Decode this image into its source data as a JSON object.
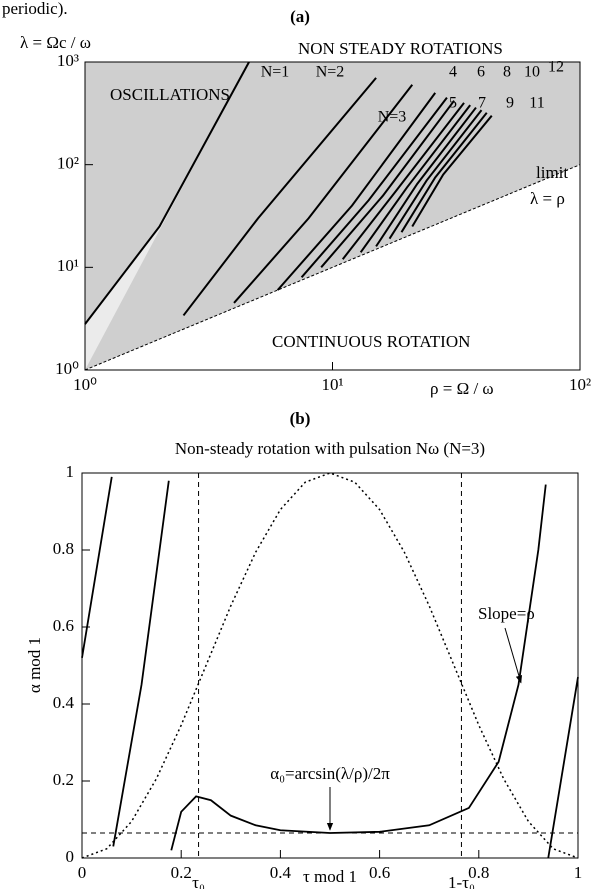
{
  "chart_data": [
    {
      "type": "line",
      "panel": "(a)",
      "caption_fragment": "periodic).",
      "ylabel": "λ = Ωc / ω",
      "xlabel": "ρ = Ω / ω",
      "log_x": true,
      "log_y": true,
      "xlim": [
        1,
        100
      ],
      "ylim": [
        1,
        1000
      ],
      "xticks": [
        {
          "value": 1,
          "label": "10⁰"
        },
        {
          "value": 10,
          "label": "10¹"
        },
        {
          "value": 100,
          "label": "10²"
        }
      ],
      "yticks": [
        {
          "value": 1,
          "label": "10⁰"
        },
        {
          "value": 10,
          "label": "10¹"
        },
        {
          "value": 100,
          "label": "10²"
        },
        {
          "value": 1000,
          "label": "10³"
        }
      ],
      "region_labels": [
        "OSCILLATIONS",
        "NON STEADY ROTATIONS",
        "CONTINUOUS ROTATION"
      ],
      "limit_label": [
        "limit",
        "λ = ρ"
      ],
      "limit": {
        "x": [
          1,
          100
        ],
        "y": [
          1,
          100
        ]
      },
      "series": [
        {
          "name": "N=1",
          "color": "#000000",
          "x": [
            1,
            2,
            4.6
          ],
          "values": [
            2.8,
            25,
            1000
          ]
        },
        {
          "name": "N=2",
          "color": "#000000",
          "x": [
            2.5,
            5,
            15
          ],
          "values": [
            3.4,
            30,
            700
          ]
        },
        {
          "name": "N=3",
          "color": "#000000",
          "x": [
            4,
            8,
            21
          ],
          "values": [
            4.5,
            30,
            600
          ]
        },
        {
          "name": "4",
          "color": "#000000",
          "x": [
            6,
            12,
            26
          ],
          "values": [
            6,
            40,
            500
          ]
        },
        {
          "name": "5",
          "color": "#000000",
          "x": [
            7.5,
            14,
            29
          ],
          "values": [
            8,
            45,
            450
          ]
        },
        {
          "name": "6",
          "color": "#000000",
          "x": [
            9,
            16,
            31
          ],
          "values": [
            10,
            50,
            420
          ]
        },
        {
          "name": "7",
          "color": "#000000",
          "x": [
            11,
            18,
            34
          ],
          "values": [
            12,
            55,
            400
          ]
        },
        {
          "name": "8",
          "color": "#000000",
          "x": [
            13,
            20,
            36
          ],
          "values": [
            14,
            60,
            380
          ]
        },
        {
          "name": "9",
          "color": "#000000",
          "x": [
            15,
            22,
            38
          ],
          "values": [
            16,
            65,
            360
          ]
        },
        {
          "name": "10",
          "color": "#000000",
          "x": [
            17,
            24,
            40
          ],
          "values": [
            19,
            70,
            340
          ]
        },
        {
          "name": "11",
          "color": "#000000",
          "x": [
            19,
            26,
            42
          ],
          "values": [
            22,
            75,
            320
          ]
        },
        {
          "name": "12",
          "color": "#000000",
          "x": [
            21,
            28,
            44
          ],
          "values": [
            25,
            80,
            300
          ]
        }
      ]
    },
    {
      "type": "line",
      "panel": "(b)",
      "title": "Non-steady rotation with pulsation Nω (N=3)",
      "ylabel": "α mod 1",
      "xlabel": "τ mod 1",
      "xlim": [
        0,
        1
      ],
      "ylim": [
        0,
        1
      ],
      "xticks": [
        0,
        0.2,
        0.4,
        0.6,
        0.8,
        1
      ],
      "yticks": [
        0,
        0.2,
        0.4,
        0.6,
        0.8,
        1
      ],
      "vlines": [
        0.235,
        0.765
      ],
      "vline_labels": [
        "τ₀",
        "1-τ₀"
      ],
      "hlines": [
        0.065
      ],
      "annotations": [
        "Slope=ρ",
        "α₀=arcsin(λ/ρ)/2π"
      ],
      "series": [
        {
          "style": "solid",
          "color": "#000000",
          "x": [
            0,
            0.06,
            null,
            0.063,
            0.12,
            0.175,
            null,
            0.18,
            0.2,
            0.23,
            0.26,
            0.3,
            0.35,
            0.4,
            0.5,
            0.6,
            0.7,
            0.78,
            0.84,
            0.88,
            0.92,
            0.935,
            null,
            0.94,
            1
          ],
          "values": [
            0.52,
            0.99,
            null,
            0.03,
            0.45,
            0.98,
            null,
            0.02,
            0.12,
            0.16,
            0.15,
            0.11,
            0.085,
            0.072,
            0.065,
            0.068,
            0.085,
            0.13,
            0.25,
            0.45,
            0.8,
            0.97,
            null,
            0,
            0.47
          ]
        },
        {
          "style": "dotted",
          "color": "#000000",
          "x": [
            0,
            0.05,
            0.1,
            0.15,
            0.2,
            0.25,
            0.3,
            0.35,
            0.4,
            0.45,
            0.5,
            0.55,
            0.6,
            0.65,
            0.7,
            0.75,
            0.8,
            0.85,
            0.9,
            0.95,
            1
          ],
          "values": [
            0,
            0.024,
            0.095,
            0.206,
            0.345,
            0.5,
            0.655,
            0.794,
            0.905,
            0.976,
            1,
            0.976,
            0.905,
            0.794,
            0.655,
            0.5,
            0.345,
            0.206,
            0.095,
            0.024,
            0
          ]
        }
      ]
    }
  ]
}
